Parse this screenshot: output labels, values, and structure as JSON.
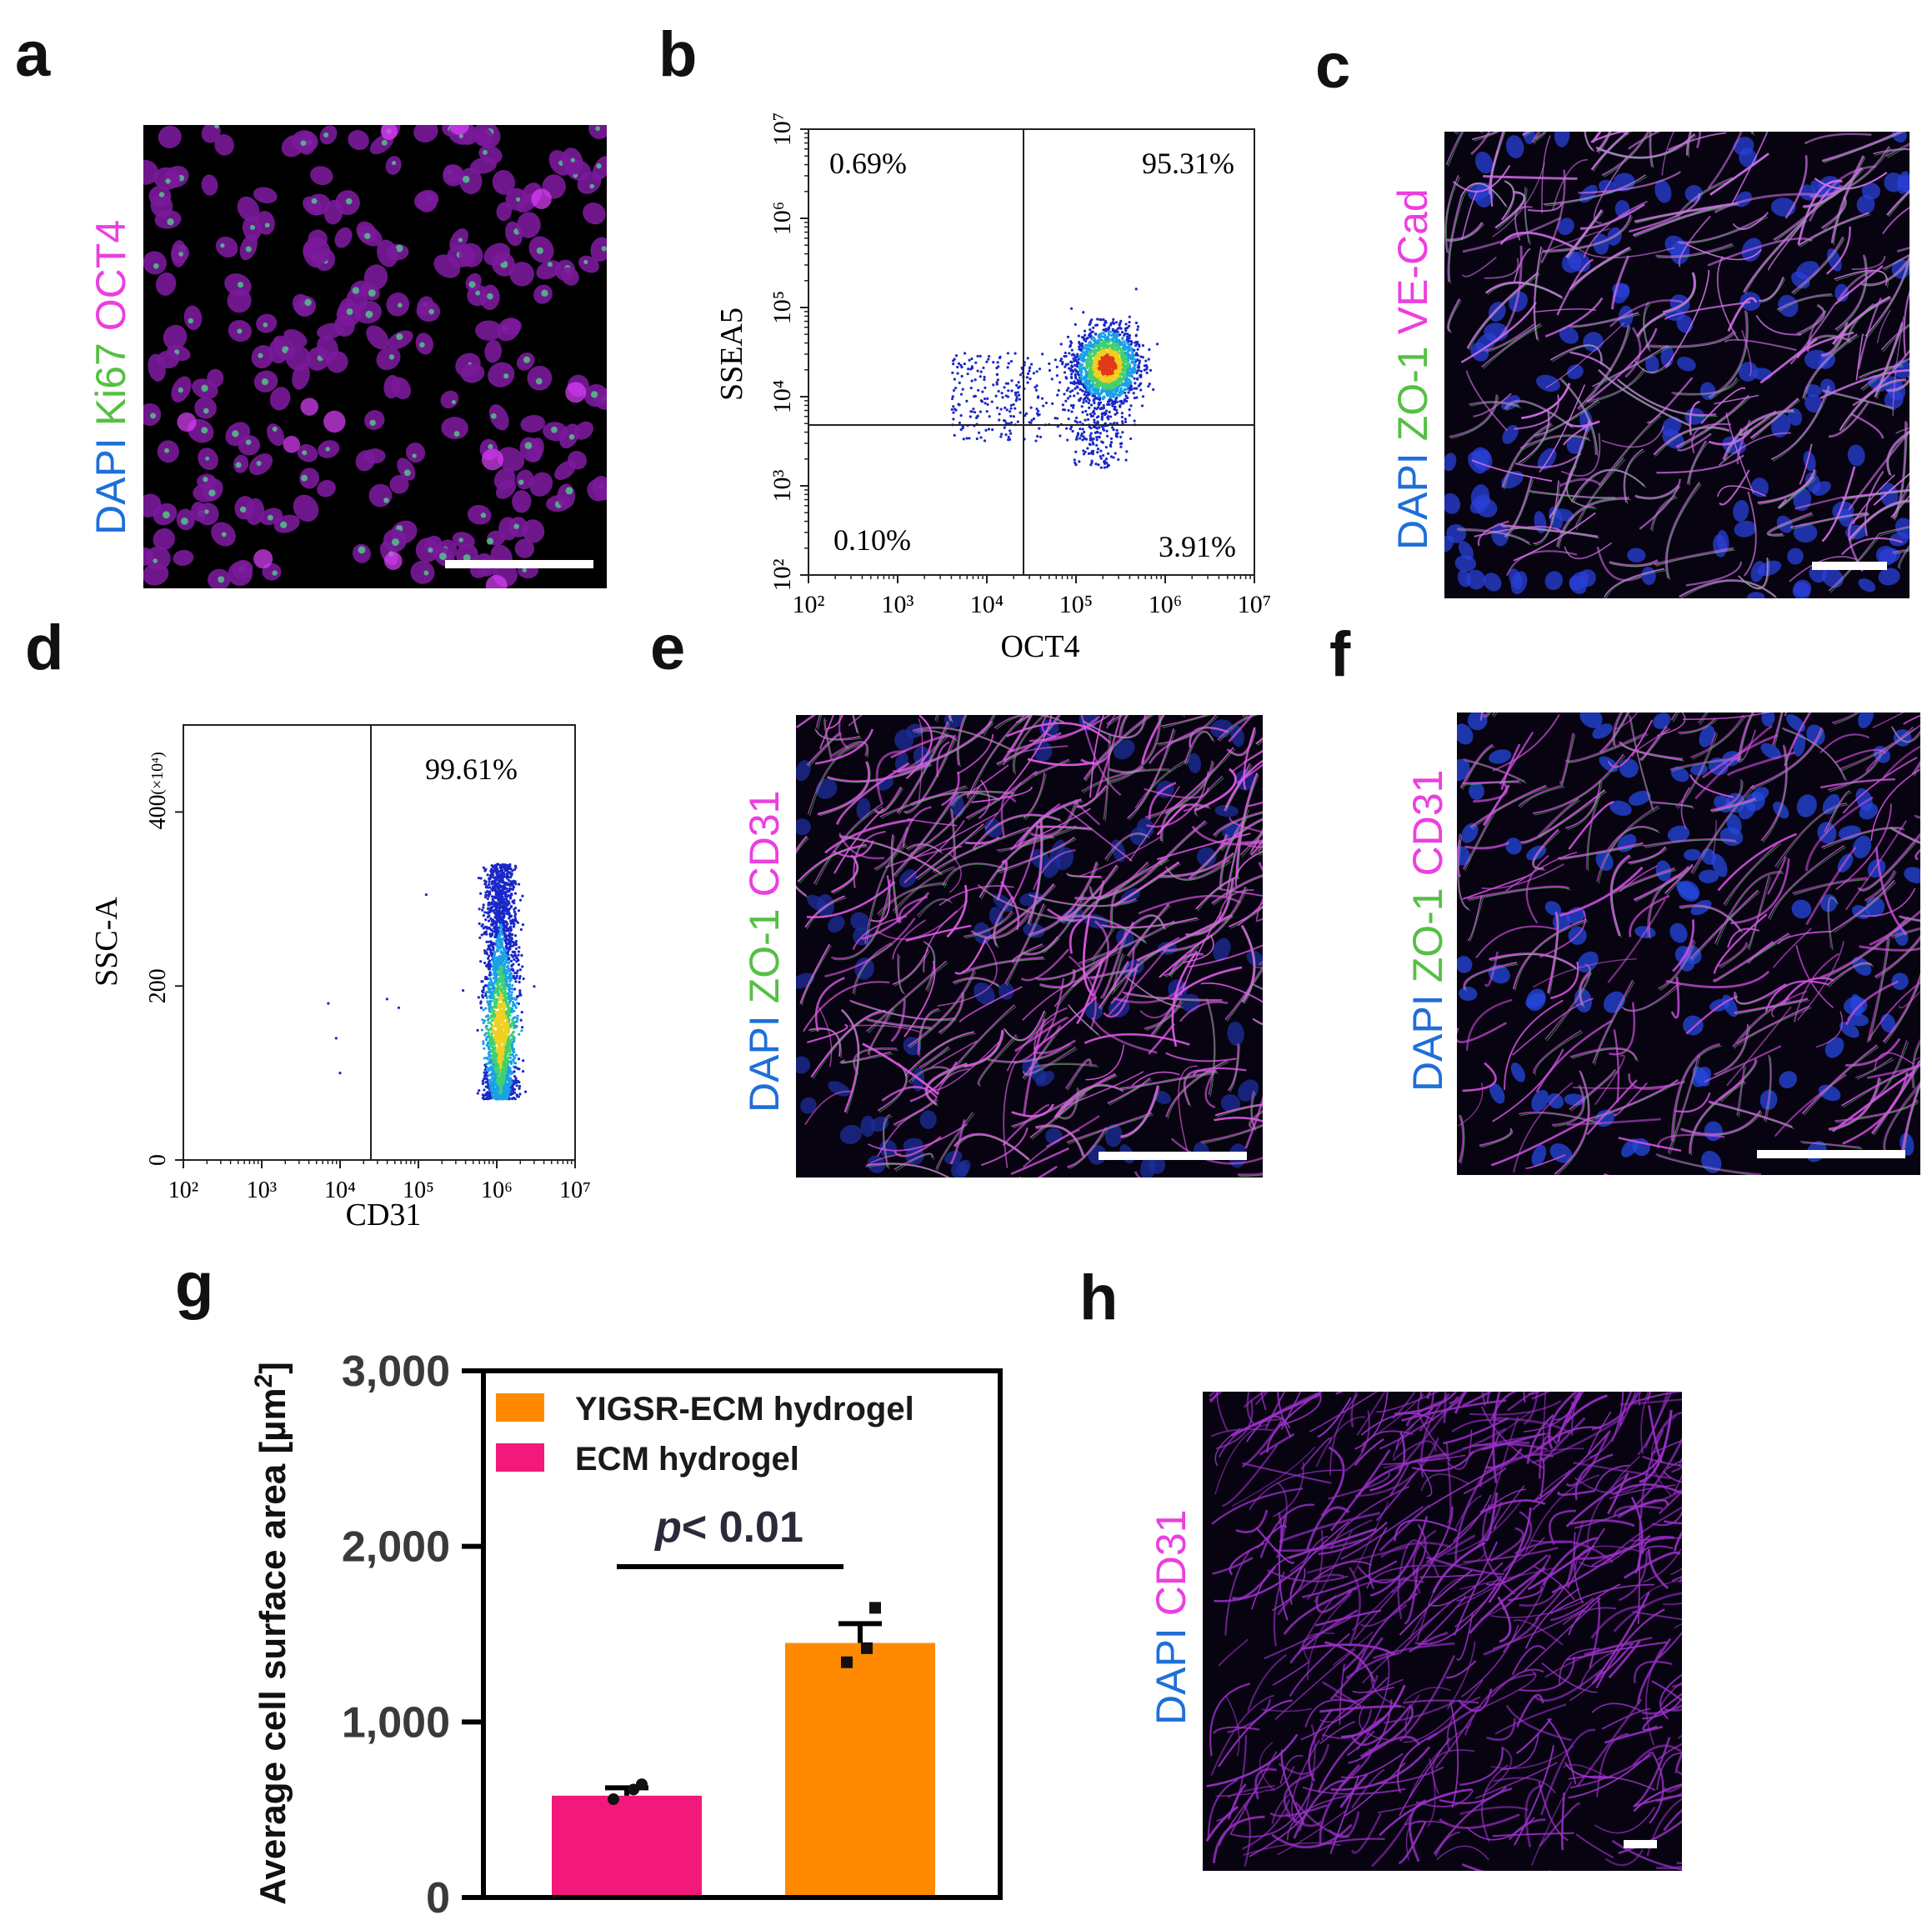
{
  "panels": {
    "a": {
      "letter": "a",
      "stain": [
        "DAPI",
        "Ki67",
        "OCT4"
      ],
      "stain_colors": [
        "#1e6fd9",
        "#55c043",
        "#ec3fe0"
      ]
    },
    "b": {
      "letter": "b",
      "xlabel": "OCT4",
      "ylabel": "SSEA5",
      "x_ticks": [
        "10²",
        "10³",
        "10⁴",
        "10⁵",
        "10⁶",
        "10⁷"
      ],
      "y_ticks": [
        "10²",
        "10³",
        "10⁴",
        "10⁵",
        "10⁶",
        "10⁷"
      ],
      "quadrants": {
        "upper_left": "0.69%",
        "upper_right": "95.31%",
        "lower_left": "0.10%",
        "lower_right": "3.91%"
      }
    },
    "c": {
      "letter": "c",
      "stain": [
        "DAPI",
        "ZO-1",
        "VE-Cad"
      ]
    },
    "d": {
      "letter": "d",
      "xlabel": "CD31",
      "ylabel": "SSC-A",
      "y_multiplier": "(×10⁴)",
      "x_ticks": [
        "10²",
        "10³",
        "10⁴",
        "10⁵",
        "10⁶",
        "10⁷"
      ],
      "y_ticks": [
        "0",
        "200",
        "400"
      ],
      "gate_value": "99.61%"
    },
    "e": {
      "letter": "e",
      "stain": [
        "DAPI",
        "ZO-1",
        "CD31"
      ]
    },
    "f": {
      "letter": "f",
      "stain": [
        "DAPI",
        "ZO-1",
        "CD31"
      ]
    },
    "g": {
      "letter": "g"
    },
    "h": {
      "letter": "h",
      "stain": [
        "DAPI",
        "CD31"
      ]
    }
  },
  "chart_data": {
    "type": "bar",
    "title": "",
    "xlabel": "",
    "ylabel": "Average cell surface area [µm²]",
    "ylim": [
      0,
      3000
    ],
    "y_ticks": [
      0,
      1000,
      2000,
      3000
    ],
    "y_tick_labels": [
      "0",
      "1,000",
      "2,000",
      "3,000"
    ],
    "categories": [
      "ECM hydrogel",
      "YIGSR-ECM hydrogel"
    ],
    "values": [
      580,
      1450
    ],
    "sem": [
      45,
      110
    ],
    "points": [
      [
        560,
        615,
        645
      ],
      [
        1340,
        1420,
        1650
      ]
    ],
    "colors": [
      "#f2197a",
      "#ff8a00"
    ],
    "legend": [
      "YIGSR-ECM hydrogel",
      "ECM hydrogel"
    ],
    "legend_position": "top-left",
    "annotation_prefix": "p",
    "annotation_suffix": "< 0.01"
  }
}
